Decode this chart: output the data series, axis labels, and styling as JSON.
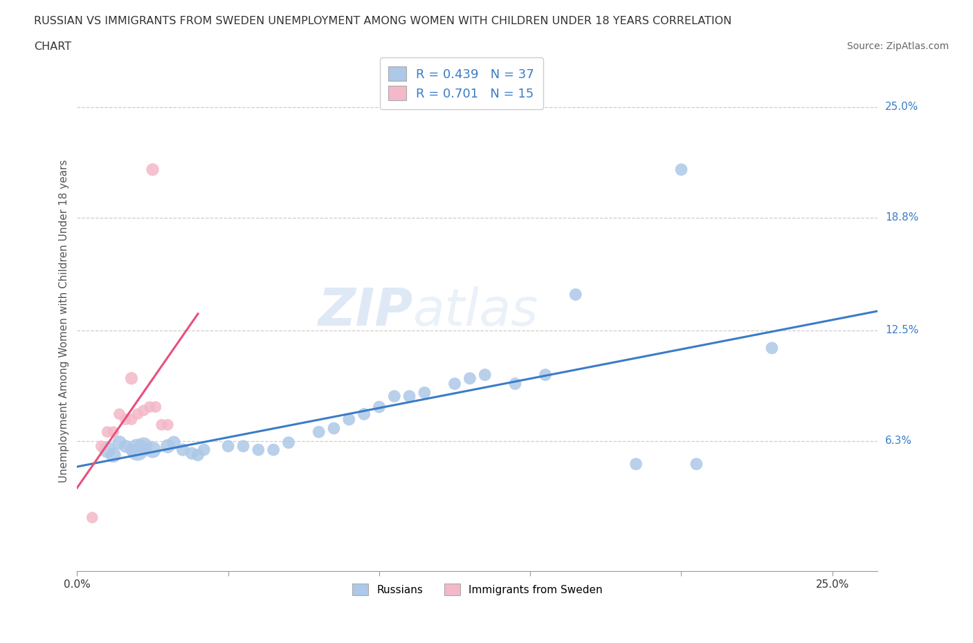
{
  "title_line1": "RUSSIAN VS IMMIGRANTS FROM SWEDEN UNEMPLOYMENT AMONG WOMEN WITH CHILDREN UNDER 18 YEARS CORRELATION",
  "title_line2": "CHART",
  "source": "Source: ZipAtlas.com",
  "ylabel": "Unemployment Among Women with Children Under 18 years",
  "xlim": [
    0.0,
    0.265
  ],
  "ylim": [
    -0.01,
    0.27
  ],
  "xticks": [
    0.0,
    0.05,
    0.1,
    0.15,
    0.2,
    0.25
  ],
  "xtick_labels": [
    "0.0%",
    "",
    "",
    "",
    "",
    "25.0%"
  ],
  "ytick_vals_right": [
    0.25,
    0.188,
    0.125,
    0.063
  ],
  "ytick_labels_right": [
    "25.0%",
    "18.8%",
    "12.5%",
    "6.3%"
  ],
  "R_russian": 0.439,
  "N_russian": 37,
  "R_sweden": 0.701,
  "N_sweden": 15,
  "russian_color": "#adc8e8",
  "sweden_color": "#f4b8c8",
  "russian_line_color": "#3a7cc7",
  "sweden_line_color": "#e8507a",
  "watermark_zip": "ZIP",
  "watermark_atlas": "atlas",
  "background_color": "#ffffff",
  "russians_data": [
    [
      0.01,
      0.058,
      280
    ],
    [
      0.012,
      0.055,
      230
    ],
    [
      0.014,
      0.062,
      200
    ],
    [
      0.016,
      0.06,
      170
    ],
    [
      0.018,
      0.058,
      150
    ],
    [
      0.02,
      0.058,
      500
    ],
    [
      0.022,
      0.06,
      320
    ],
    [
      0.025,
      0.058,
      280
    ],
    [
      0.03,
      0.06,
      200
    ],
    [
      0.032,
      0.062,
      180
    ],
    [
      0.035,
      0.058,
      160
    ],
    [
      0.038,
      0.056,
      160
    ],
    [
      0.04,
      0.055,
      150
    ],
    [
      0.042,
      0.058,
      150
    ],
    [
      0.05,
      0.06,
      150
    ],
    [
      0.055,
      0.06,
      150
    ],
    [
      0.06,
      0.058,
      150
    ],
    [
      0.065,
      0.058,
      150
    ],
    [
      0.07,
      0.062,
      150
    ],
    [
      0.08,
      0.068,
      150
    ],
    [
      0.085,
      0.07,
      150
    ],
    [
      0.09,
      0.075,
      150
    ],
    [
      0.095,
      0.078,
      150
    ],
    [
      0.1,
      0.082,
      150
    ],
    [
      0.105,
      0.088,
      150
    ],
    [
      0.11,
      0.088,
      150
    ],
    [
      0.115,
      0.09,
      150
    ],
    [
      0.125,
      0.095,
      150
    ],
    [
      0.13,
      0.098,
      150
    ],
    [
      0.135,
      0.1,
      150
    ],
    [
      0.145,
      0.095,
      150
    ],
    [
      0.155,
      0.1,
      150
    ],
    [
      0.165,
      0.145,
      150
    ],
    [
      0.185,
      0.05,
      150
    ],
    [
      0.2,
      0.215,
      150
    ],
    [
      0.205,
      0.05,
      150
    ],
    [
      0.23,
      0.115,
      150
    ]
  ],
  "sweden_data": [
    [
      0.005,
      0.02,
      130
    ],
    [
      0.008,
      0.06,
      130
    ],
    [
      0.01,
      0.068,
      130
    ],
    [
      0.012,
      0.068,
      130
    ],
    [
      0.014,
      0.078,
      130
    ],
    [
      0.016,
      0.075,
      130
    ],
    [
      0.018,
      0.075,
      130
    ],
    [
      0.02,
      0.078,
      130
    ],
    [
      0.022,
      0.08,
      130
    ],
    [
      0.024,
      0.082,
      130
    ],
    [
      0.026,
      0.082,
      130
    ],
    [
      0.028,
      0.072,
      130
    ],
    [
      0.03,
      0.072,
      130
    ],
    [
      0.018,
      0.098,
      160
    ],
    [
      0.025,
      0.215,
      160
    ]
  ]
}
